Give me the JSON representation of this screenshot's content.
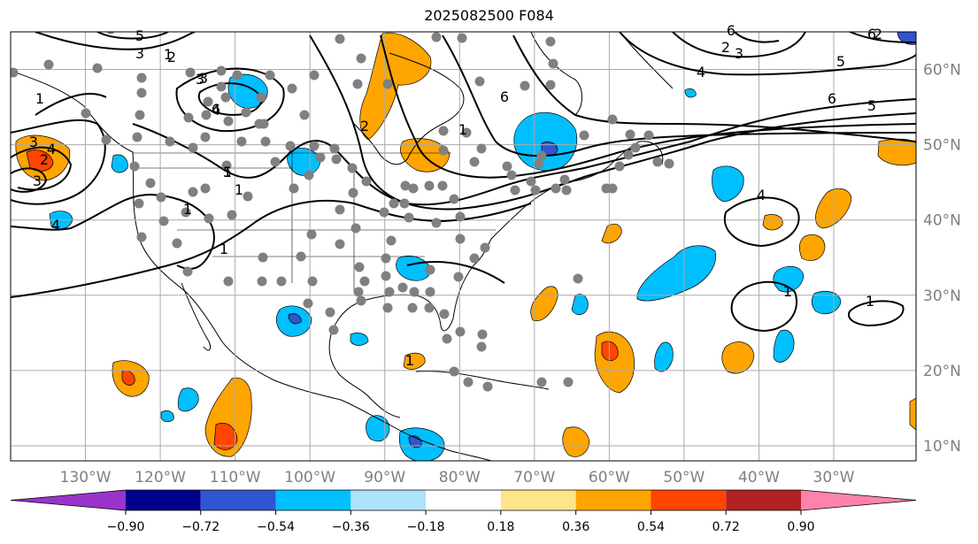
{
  "title": "2025082500 F084",
  "map": {
    "lon_range": [
      -140,
      -19
    ],
    "lat_range": [
      8,
      65
    ],
    "lat_gridlines": [
      10,
      20,
      30,
      40,
      50,
      60
    ],
    "lon_gridlines": [
      -130,
      -120,
      -110,
      -100,
      -90,
      -80,
      -70,
      -60,
      -50,
      -40,
      -30
    ],
    "lat_labels": [
      "10°N",
      "20°N",
      "30°N",
      "40°N",
      "50°N",
      "60°N"
    ],
    "lon_labels": [
      "130°W",
      "120°W",
      "110°W",
      "100°W",
      "90°W",
      "80°W",
      "70°W",
      "60°W",
      "50°W",
      "40°W",
      "30°W"
    ]
  },
  "colorbar": {
    "colors": [
      "#9933cc",
      "#00008b",
      "#3155d0",
      "#00bfff",
      "#aee1fa",
      "#ffffff",
      "#fde68a",
      "#ffa500",
      "#ff4500",
      "#b22222",
      "#ff82ab"
    ],
    "ticks": [
      "−0.90",
      "−0.72",
      "−0.54",
      "−0.36",
      "−0.18",
      "0.18",
      "0.36",
      "0.54",
      "0.72",
      "0.90"
    ]
  },
  "contour_labels": [
    "3",
    "4",
    "2",
    "3",
    "4",
    "1",
    "1",
    "1",
    "1",
    "2",
    "3",
    "1",
    "5",
    "3",
    "6",
    "1",
    "2",
    "3",
    "4",
    "5",
    "6",
    "1",
    "6",
    "2",
    "3",
    "4",
    "5",
    "6",
    "5",
    "4",
    "1",
    "1",
    "1",
    "6",
    "2"
  ],
  "colors": {
    "anomaly_blue": "#00bfff",
    "anomaly_dark_blue": "#3155d0",
    "anomaly_orange": "#ffa500",
    "anomaly_red": "#ff4500",
    "station_dot": "#808080",
    "gridline": "#aaaaaa"
  }
}
